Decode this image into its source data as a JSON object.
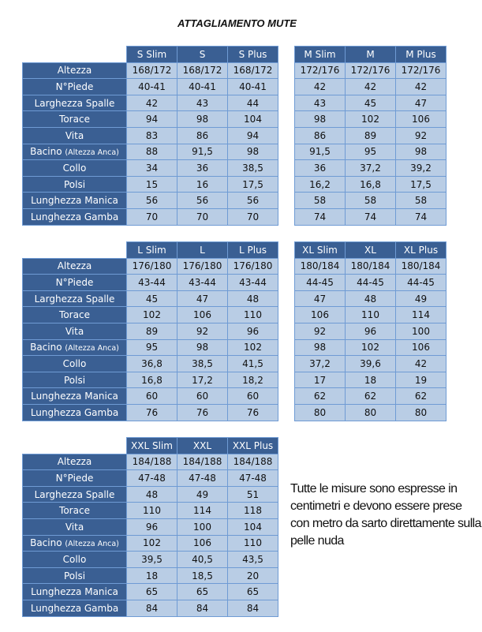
{
  "title": "ATTAGLIAMENTO MUTE",
  "labels": [
    "Altezza",
    "N°Piede",
    "Larghezza Spalle",
    "Torace",
    "Vita",
    "Bacino",
    "Collo",
    "Polsi",
    "Lunghezza Manica",
    "Lunghezza Gamba"
  ],
  "bacino_note": "(Altezza Anca)",
  "tables": [
    {
      "sizes": [
        "S Slim",
        "S",
        "S Plus"
      ],
      "rows": [
        [
          "168/172",
          "168/172",
          "168/172"
        ],
        [
          "40-41",
          "40-41",
          "40-41"
        ],
        [
          "42",
          "43",
          "44"
        ],
        [
          "94",
          "98",
          "104"
        ],
        [
          "83",
          "86",
          "94"
        ],
        [
          "88",
          "91,5",
          "98"
        ],
        [
          "34",
          "36",
          "38,5"
        ],
        [
          "15",
          "16",
          "17,5"
        ],
        [
          "56",
          "56",
          "56"
        ],
        [
          "70",
          "70",
          "70"
        ]
      ]
    },
    {
      "sizes": [
        "M Slim",
        "M",
        "M Plus"
      ],
      "rows": [
        [
          "172/176",
          "172/176",
          "172/176"
        ],
        [
          "42",
          "42",
          "42"
        ],
        [
          "43",
          "45",
          "47"
        ],
        [
          "98",
          "102",
          "106"
        ],
        [
          "86",
          "89",
          "92"
        ],
        [
          "91,5",
          "95",
          "98"
        ],
        [
          "36",
          "37,2",
          "39,2"
        ],
        [
          "16,2",
          "16,8",
          "17,5"
        ],
        [
          "58",
          "58",
          "58"
        ],
        [
          "74",
          "74",
          "74"
        ]
      ]
    },
    {
      "sizes": [
        "L Slim",
        "L",
        "L Plus"
      ],
      "rows": [
        [
          "176/180",
          "176/180",
          "176/180"
        ],
        [
          "43-44",
          "43-44",
          "43-44"
        ],
        [
          "45",
          "47",
          "48"
        ],
        [
          "102",
          "106",
          "110"
        ],
        [
          "89",
          "92",
          "96"
        ],
        [
          "95",
          "98",
          "102"
        ],
        [
          "36,8",
          "38,5",
          "41,5"
        ],
        [
          "16,8",
          "17,2",
          "18,2"
        ],
        [
          "60",
          "60",
          "60"
        ],
        [
          "76",
          "76",
          "76"
        ]
      ]
    },
    {
      "sizes": [
        "XL Slim",
        "XL",
        "XL Plus"
      ],
      "rows": [
        [
          "180/184",
          "180/184",
          "180/184"
        ],
        [
          "44-45",
          "44-45",
          "44-45"
        ],
        [
          "47",
          "48",
          "49"
        ],
        [
          "106",
          "110",
          "114"
        ],
        [
          "92",
          "96",
          "100"
        ],
        [
          "98",
          "102",
          "106"
        ],
        [
          "37,2",
          "39,6",
          "42"
        ],
        [
          "17",
          "18",
          "19"
        ],
        [
          "62",
          "62",
          "62"
        ],
        [
          "80",
          "80",
          "80"
        ]
      ]
    },
    {
      "sizes": [
        "XXL Slim",
        "XXL",
        "XXL Plus"
      ],
      "rows": [
        [
          "184/188",
          "184/188",
          "184/188"
        ],
        [
          "47-48",
          "47-48",
          "47-48"
        ],
        [
          "48",
          "49",
          "51"
        ],
        [
          "110",
          "114",
          "118"
        ],
        [
          "96",
          "100",
          "104"
        ],
        [
          "102",
          "106",
          "110"
        ],
        [
          "39,5",
          "40,5",
          "43,5"
        ],
        [
          "18",
          "18,5",
          "20"
        ],
        [
          "65",
          "65",
          "65"
        ],
        [
          "84",
          "84",
          "84"
        ]
      ]
    }
  ],
  "note": "Tutte le misure sono espresse in centimetri e devono essere prese con metro da sarto direttamente sulla pelle nuda"
}
